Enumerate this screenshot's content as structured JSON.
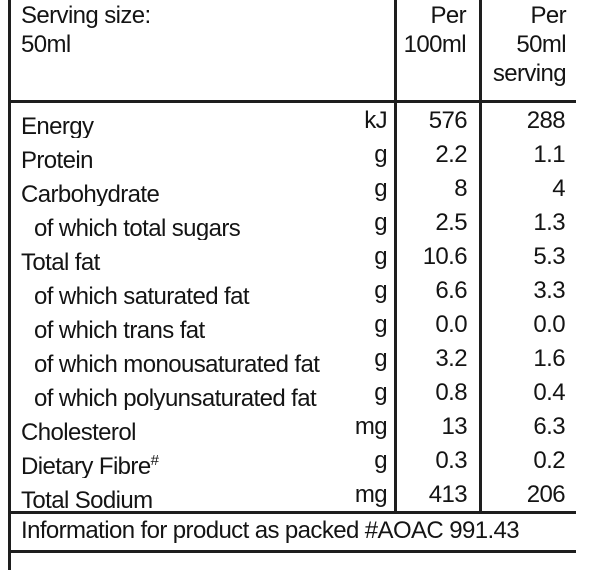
{
  "header": {
    "serving_size": "Serving size:\n50ml",
    "col_per_100ml": "Per\n100ml",
    "col_per_50ml": "Per\n50ml\nserving"
  },
  "rows": [
    {
      "label": "Energy",
      "sup": "",
      "unit": "kJ",
      "per100": "576",
      "per50": "288"
    },
    {
      "label": "Protein",
      "sup": "",
      "unit": "g",
      "per100": "2.2",
      "per50": "1.1"
    },
    {
      "label": "Carbohydrate",
      "sup": "",
      "unit": "g",
      "per100": "8",
      "per50": "4"
    },
    {
      "label": "of which total sugars",
      "sup": "",
      "unit": "g",
      "per100": "2.5",
      "per50": "1.3"
    },
    {
      "label": "Total fat",
      "sup": "",
      "unit": "g",
      "per100": "10.6",
      "per50": "5.3"
    },
    {
      "label": "of which saturated fat",
      "sup": "",
      "unit": "g",
      "per100": "6.6",
      "per50": "3.3"
    },
    {
      "label": "of which trans fat",
      "sup": "",
      "unit": "g",
      "per100": "0.0",
      "per50": "0.0"
    },
    {
      "label": "of which monousaturated fat",
      "sup": "",
      "unit": "g",
      "per100": "3.2",
      "per50": "1.6"
    },
    {
      "label": "of which polyunsaturated fat",
      "sup": "",
      "unit": "g",
      "per100": "0.8",
      "per50": "0.4"
    },
    {
      "label": "Cholesterol",
      "sup": "",
      "unit": "mg",
      "per100": "13",
      "per50": "6.3"
    },
    {
      "label": "Dietary Fibre",
      "sup": "#",
      "unit": "g",
      "per100": "0.3",
      "per50": "0.2"
    },
    {
      "label": "Total Sodium",
      "sup": "",
      "unit": "mg",
      "per100": "413",
      "per50": "206"
    }
  ],
  "footer": {
    "note": "Information for product as packed #AOAC 991.43"
  },
  "colors": {
    "text": "#141414",
    "rule": "#1e1e1e",
    "background": "#ffffff"
  }
}
